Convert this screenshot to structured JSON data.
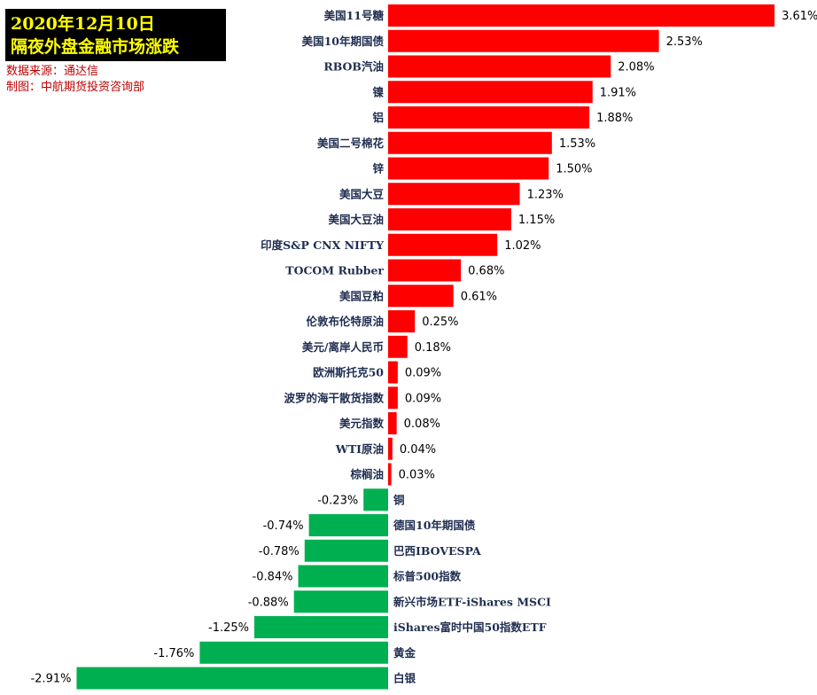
{
  "header": {
    "title_line1": "2020年12月10日",
    "title_line2": "隔夜外盘金融市场涨跌",
    "source": "数据来源：通达信",
    "producer": "制图：中航期货投资咨询部"
  },
  "colors": {
    "positive": "#ff0000",
    "negative": "#00b050",
    "title_bg": "#000000",
    "title_text": "#ffff00",
    "source_text": "#c00000"
  },
  "chart_data": {
    "type": "bar",
    "orientation": "horizontal",
    "categories": [
      "美国11号糖",
      "美国10年期国债",
      "RBOB汽油",
      "镍",
      "铝",
      "美国二号棉花",
      "锌",
      "美国大豆",
      "美国大豆油",
      "印度S&P CNX NIFTY",
      "TOCOM Rubber",
      "美国豆粕",
      "伦敦布伦特原油",
      "美元/离岸人民币",
      "欧洲斯托克50",
      "波罗的海干散货指数",
      "美元指数",
      "WTI原油",
      "棕榈油",
      "铜",
      "德国10年期国债",
      "巴西IBOVESPA",
      "标普500指数",
      "新兴市场ETF-iShares MSCI",
      "iShares富时中国50指数ETF",
      "黄金",
      "白银"
    ],
    "values": [
      3.61,
      2.53,
      2.08,
      1.91,
      1.88,
      1.53,
      1.5,
      1.23,
      1.15,
      1.02,
      0.68,
      0.61,
      0.25,
      0.18,
      0.09,
      0.09,
      0.08,
      0.04,
      0.03,
      -0.23,
      -0.74,
      -0.78,
      -0.84,
      -0.88,
      -1.25,
      -1.76,
      -2.91
    ],
    "value_labels": [
      "3.61%",
      "2.53%",
      "2.08%",
      "1.91%",
      "1.88%",
      "1.53%",
      "1.50%",
      "1.23%",
      "1.15%",
      "1.02%",
      "0.68%",
      "0.61%",
      "0.25%",
      "0.18%",
      "0.09%",
      "0.09%",
      "0.08%",
      "0.04%",
      "0.03%",
      "-0.23%",
      "-0.74%",
      "-0.78%",
      "-0.84%",
      "-0.88%",
      "-1.25%",
      "-1.76%",
      "-2.91%"
    ],
    "unit": "%",
    "xlim": [
      -2.91,
      3.61
    ],
    "grid": false,
    "legend": "none"
  }
}
